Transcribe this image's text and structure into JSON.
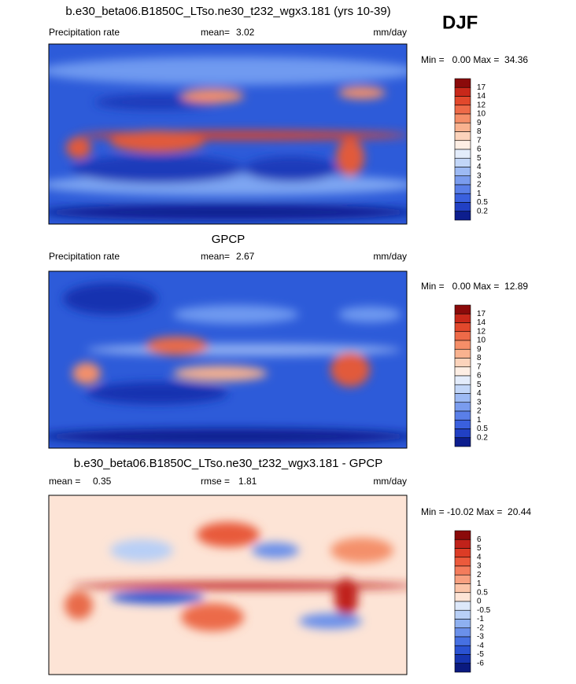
{
  "header": {
    "season": "DJF"
  },
  "panels": [
    {
      "title": "b.e30_beta06.B1850C_LTso.ne30_t232_wgx3.181 (yrs 10-39)",
      "left_label": "Precipitation rate",
      "stats": [
        {
          "label": "mean=",
          "value": "3.02"
        }
      ],
      "units": "mm/day",
      "minmax": "Min =   0.00 Max =  34.36",
      "colorbar": {
        "labels": [
          "17",
          "14",
          "12",
          "10",
          "9",
          "8",
          "7",
          "6",
          "5",
          "4",
          "3",
          "2",
          "1",
          "0.5",
          "0.2"
        ],
        "colors": [
          "#8b0a0a",
          "#c8281a",
          "#e2482c",
          "#ee6a48",
          "#f58e68",
          "#f9b28f",
          "#fcd3bb",
          "#fdeee4",
          "#e3ecfb",
          "#c2d6f8",
          "#9dbaf4",
          "#7a9cee",
          "#5a7fe8",
          "#3a60de",
          "#2140c4",
          "#0d1e8e"
        ]
      }
    },
    {
      "title": "GPCP",
      "left_label": "Precipitation rate",
      "stats": [
        {
          "label": "mean=",
          "value": "2.67"
        }
      ],
      "units": "mm/day",
      "minmax": "Min =   0.00 Max =  12.89",
      "colorbar": {
        "labels": [
          "17",
          "14",
          "12",
          "10",
          "9",
          "8",
          "7",
          "6",
          "5",
          "4",
          "3",
          "2",
          "1",
          "0.5",
          "0.2"
        ],
        "colors": [
          "#8b0a0a",
          "#c8281a",
          "#e2482c",
          "#ee6a48",
          "#f58e68",
          "#f9b28f",
          "#fcd3bb",
          "#fdeee4",
          "#e3ecfb",
          "#c2d6f8",
          "#9dbaf4",
          "#7a9cee",
          "#5a7fe8",
          "#3a60de",
          "#2140c4",
          "#0d1e8e"
        ]
      }
    },
    {
      "title": "b.e30_beta06.B1850C_LTso.ne30_t232_wgx3.181 - GPCP",
      "stats": [
        {
          "label": "mean =",
          "value": "0.35"
        },
        {
          "label": "rmse =",
          "value": "1.81"
        }
      ],
      "units": "mm/day",
      "minmax": "Min = -10.02 Max =  20.44",
      "colorbar": {
        "labels": [
          "6",
          "5",
          "4",
          "3",
          "2",
          "1",
          "0.5",
          "0",
          "-0.5",
          "-1",
          "-2",
          "-3",
          "-4",
          "-5",
          "-6"
        ],
        "colors": [
          "#8b0a0a",
          "#c0221a",
          "#dc3c26",
          "#ec5a3c",
          "#f47c5c",
          "#f8a080",
          "#fbc4a8",
          "#fde4d6",
          "#dde8fa",
          "#b8cff6",
          "#8eb0f0",
          "#6a90ea",
          "#4670e2",
          "#2a52d2",
          "#1634b0",
          "#0a1a80"
        ]
      }
    }
  ]
}
